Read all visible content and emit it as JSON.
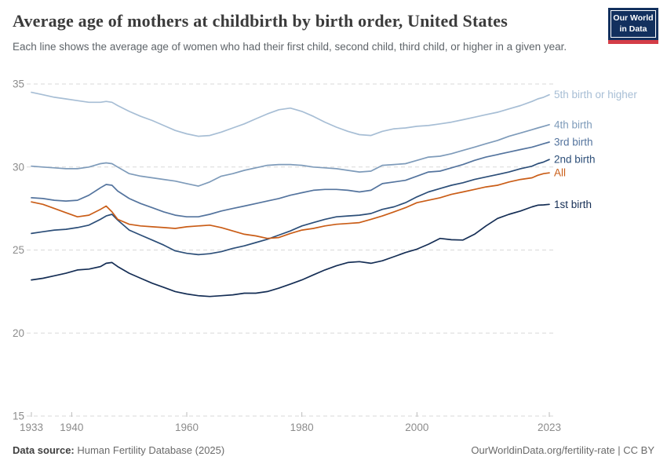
{
  "header": {
    "title": "Average age of mothers at childbirth by birth order, United States",
    "subtitle": "Each line shows the average age of women who had their first child, second child, third child, or higher in a given year.",
    "logo": {
      "line1": "Our World",
      "line2": "in Data"
    }
  },
  "chart_data": {
    "type": "line",
    "title": "Average age of mothers at childbirth by birth order, United States",
    "xlabel": "",
    "ylabel": "",
    "xlim": [
      1933,
      2023
    ],
    "ylim": [
      15,
      35.8
    ],
    "grid": "horizontal-dashed",
    "legend_position": "right-end-labels",
    "xticks": [
      1933,
      1940,
      1960,
      1980,
      2000,
      2023
    ],
    "yticks": [
      15,
      20,
      25,
      30,
      35
    ],
    "x": [
      1933,
      1935,
      1937,
      1939,
      1941,
      1943,
      1945,
      1946,
      1947,
      1948,
      1950,
      1952,
      1954,
      1956,
      1958,
      1960,
      1962,
      1964,
      1966,
      1968,
      1970,
      1972,
      1974,
      1976,
      1978,
      1980,
      1982,
      1984,
      1986,
      1988,
      1990,
      1992,
      1994,
      1996,
      1998,
      2000,
      2002,
      2004,
      2006,
      2008,
      2010,
      2012,
      2014,
      2016,
      2018,
      2020,
      2021,
      2022,
      2023
    ],
    "series": [
      {
        "name": "5th birth or higher",
        "color": "#a7bed5",
        "values": [
          34.5,
          34.35,
          34.2,
          34.1,
          34.0,
          33.9,
          33.9,
          33.95,
          33.9,
          33.7,
          33.35,
          33.05,
          32.8,
          32.5,
          32.2,
          32.0,
          31.85,
          31.9,
          32.1,
          32.35,
          32.6,
          32.9,
          33.2,
          33.45,
          33.55,
          33.35,
          33.05,
          32.7,
          32.4,
          32.15,
          31.95,
          31.9,
          32.15,
          32.3,
          32.35,
          32.45,
          32.5,
          32.6,
          32.7,
          32.85,
          33.0,
          33.15,
          33.3,
          33.5,
          33.7,
          33.95,
          34.1,
          34.2,
          34.35
        ]
      },
      {
        "name": "4th birth",
        "color": "#7e9bba",
        "values": [
          30.05,
          30.0,
          29.95,
          29.9,
          29.9,
          30.0,
          30.2,
          30.25,
          30.2,
          30.0,
          29.6,
          29.45,
          29.35,
          29.25,
          29.15,
          29.0,
          28.85,
          29.1,
          29.45,
          29.6,
          29.8,
          29.95,
          30.1,
          30.15,
          30.15,
          30.1,
          30.0,
          29.95,
          29.9,
          29.8,
          29.7,
          29.75,
          30.1,
          30.15,
          30.2,
          30.4,
          30.6,
          30.65,
          30.8,
          31.0,
          31.2,
          31.4,
          31.6,
          31.85,
          32.05,
          32.25,
          32.35,
          32.45,
          32.55
        ]
      },
      {
        "name": "3rd birth",
        "color": "#54749e",
        "values": [
          28.15,
          28.1,
          28.0,
          27.95,
          28.0,
          28.3,
          28.75,
          28.95,
          28.9,
          28.55,
          28.1,
          27.8,
          27.55,
          27.3,
          27.1,
          27.0,
          27.0,
          27.15,
          27.35,
          27.5,
          27.65,
          27.8,
          27.95,
          28.1,
          28.3,
          28.45,
          28.6,
          28.65,
          28.65,
          28.6,
          28.5,
          28.6,
          29.0,
          29.1,
          29.2,
          29.45,
          29.7,
          29.75,
          29.95,
          30.15,
          30.4,
          30.6,
          30.75,
          30.9,
          31.05,
          31.2,
          31.3,
          31.4,
          31.5
        ]
      },
      {
        "name": "2nd birth",
        "color": "#2c4e78",
        "values": [
          26.0,
          26.1,
          26.2,
          26.25,
          26.35,
          26.5,
          26.85,
          27.05,
          27.15,
          26.8,
          26.2,
          25.9,
          25.6,
          25.3,
          24.95,
          24.8,
          24.72,
          24.78,
          24.9,
          25.1,
          25.25,
          25.45,
          25.65,
          25.9,
          26.15,
          26.45,
          26.65,
          26.85,
          27.0,
          27.05,
          27.1,
          27.2,
          27.45,
          27.6,
          27.85,
          28.2,
          28.5,
          28.7,
          28.9,
          29.05,
          29.25,
          29.4,
          29.55,
          29.7,
          29.9,
          30.05,
          30.2,
          30.3,
          30.45
        ]
      },
      {
        "name": "All",
        "color": "#ca5d17",
        "values": [
          27.9,
          27.75,
          27.5,
          27.25,
          27.0,
          27.1,
          27.45,
          27.65,
          27.3,
          26.85,
          26.55,
          26.45,
          26.4,
          26.35,
          26.3,
          26.4,
          26.45,
          26.5,
          26.35,
          26.15,
          25.95,
          25.85,
          25.7,
          25.75,
          26.0,
          26.2,
          26.3,
          26.45,
          26.55,
          26.6,
          26.65,
          26.85,
          27.05,
          27.3,
          27.55,
          27.85,
          28.0,
          28.15,
          28.35,
          28.5,
          28.65,
          28.8,
          28.9,
          29.1,
          29.25,
          29.35,
          29.5,
          29.6,
          29.65
        ]
      },
      {
        "name": "1st birth",
        "color": "#152e55",
        "values": [
          23.2,
          23.3,
          23.45,
          23.6,
          23.8,
          23.85,
          24.0,
          24.2,
          24.25,
          24.0,
          23.6,
          23.3,
          23.0,
          22.75,
          22.5,
          22.35,
          22.25,
          22.2,
          22.25,
          22.3,
          22.4,
          22.4,
          22.5,
          22.7,
          22.95,
          23.2,
          23.5,
          23.8,
          24.05,
          24.25,
          24.3,
          24.2,
          24.35,
          24.6,
          24.85,
          25.05,
          25.35,
          25.7,
          25.62,
          25.6,
          25.95,
          26.45,
          26.9,
          27.15,
          27.35,
          27.6,
          27.7,
          27.72,
          27.75
        ]
      }
    ]
  },
  "footer": {
    "source_label": "Data source:",
    "source_value": " Human Fertility Database (2025)",
    "credit": "OurWorldinData.org/fertility-rate | CC BY"
  }
}
